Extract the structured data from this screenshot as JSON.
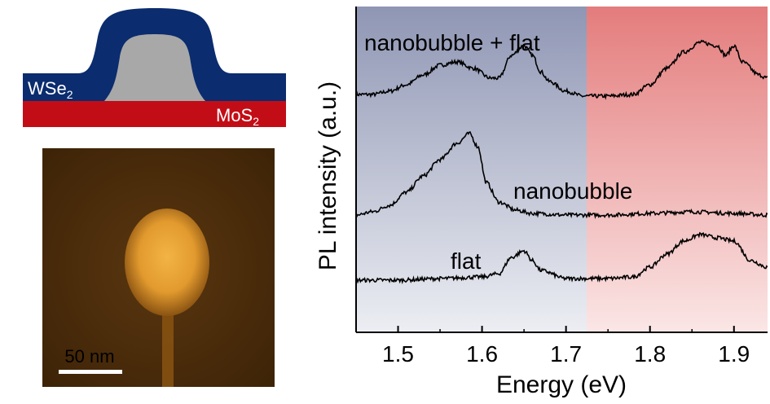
{
  "schematic": {
    "top_layer": "WSe",
    "top_layer_sub": "2",
    "bottom_layer": "MoS",
    "bottom_layer_sub": "2",
    "colors": {
      "wse2": "#0b2c6e",
      "mos2": "#c30d16",
      "bubble": "#a8a8a8"
    }
  },
  "afm_image": {
    "scale_bar_label": "50 nm",
    "colors": {
      "background": "#4a2a08",
      "bubble": "#e8a53a",
      "bar": "#ffffff"
    }
  },
  "chart_data": {
    "type": "line",
    "title": "",
    "xlabel": "Energy (eV)",
    "ylabel": "PL intensity (a.u.)",
    "xlim": [
      1.45,
      1.94
    ],
    "ylim": [
      0,
      1
    ],
    "xticks": [
      1.5,
      1.6,
      1.7,
      1.8,
      1.9
    ],
    "xtick_labels": [
      "1.5",
      "1.6",
      "1.7",
      "1.8",
      "1.9"
    ],
    "shaded_regions": [
      {
        "x": [
          1.45,
          1.733
        ],
        "color": "#9aa0bc"
      },
      {
        "x": [
          1.733,
          1.94
        ],
        "color": "#e48a8a"
      }
    ],
    "series": [
      {
        "name": "nanobubble + flat",
        "x": [
          1.45,
          1.47,
          1.49,
          1.51,
          1.53,
          1.55,
          1.57,
          1.59,
          1.61,
          1.62,
          1.635,
          1.65,
          1.66,
          1.67,
          1.68,
          1.7,
          1.72,
          1.75,
          1.78,
          1.8,
          1.82,
          1.84,
          1.86,
          1.88,
          1.89,
          1.9,
          1.91,
          1.93,
          1.94
        ],
        "values": [
          0.73,
          0.73,
          0.74,
          0.76,
          0.79,
          0.82,
          0.83,
          0.81,
          0.78,
          0.78,
          0.85,
          0.88,
          0.85,
          0.8,
          0.77,
          0.74,
          0.725,
          0.725,
          0.73,
          0.76,
          0.81,
          0.86,
          0.89,
          0.88,
          0.85,
          0.88,
          0.83,
          0.79,
          0.78
        ],
        "label_position": "top-left"
      },
      {
        "name": "nanobubble",
        "x": [
          1.45,
          1.47,
          1.49,
          1.51,
          1.53,
          1.55,
          1.57,
          1.585,
          1.595,
          1.605,
          1.62,
          1.64,
          1.66,
          1.7,
          1.75,
          1.8,
          1.85,
          1.9,
          1.94
        ],
        "values": [
          0.36,
          0.37,
          0.39,
          0.43,
          0.48,
          0.53,
          0.58,
          0.61,
          0.57,
          0.46,
          0.4,
          0.375,
          0.365,
          0.36,
          0.36,
          0.365,
          0.37,
          0.365,
          0.36
        ],
        "label_position": "right"
      },
      {
        "name": "flat",
        "x": [
          1.45,
          1.5,
          1.55,
          1.6,
          1.62,
          1.635,
          1.65,
          1.66,
          1.67,
          1.7,
          1.75,
          1.78,
          1.8,
          1.82,
          1.84,
          1.86,
          1.88,
          1.9,
          1.92,
          1.94
        ],
        "values": [
          0.16,
          0.16,
          0.165,
          0.17,
          0.18,
          0.23,
          0.25,
          0.22,
          0.19,
          0.165,
          0.165,
          0.17,
          0.2,
          0.24,
          0.28,
          0.3,
          0.29,
          0.28,
          0.22,
          0.2
        ],
        "label_position": "left"
      }
    ]
  }
}
